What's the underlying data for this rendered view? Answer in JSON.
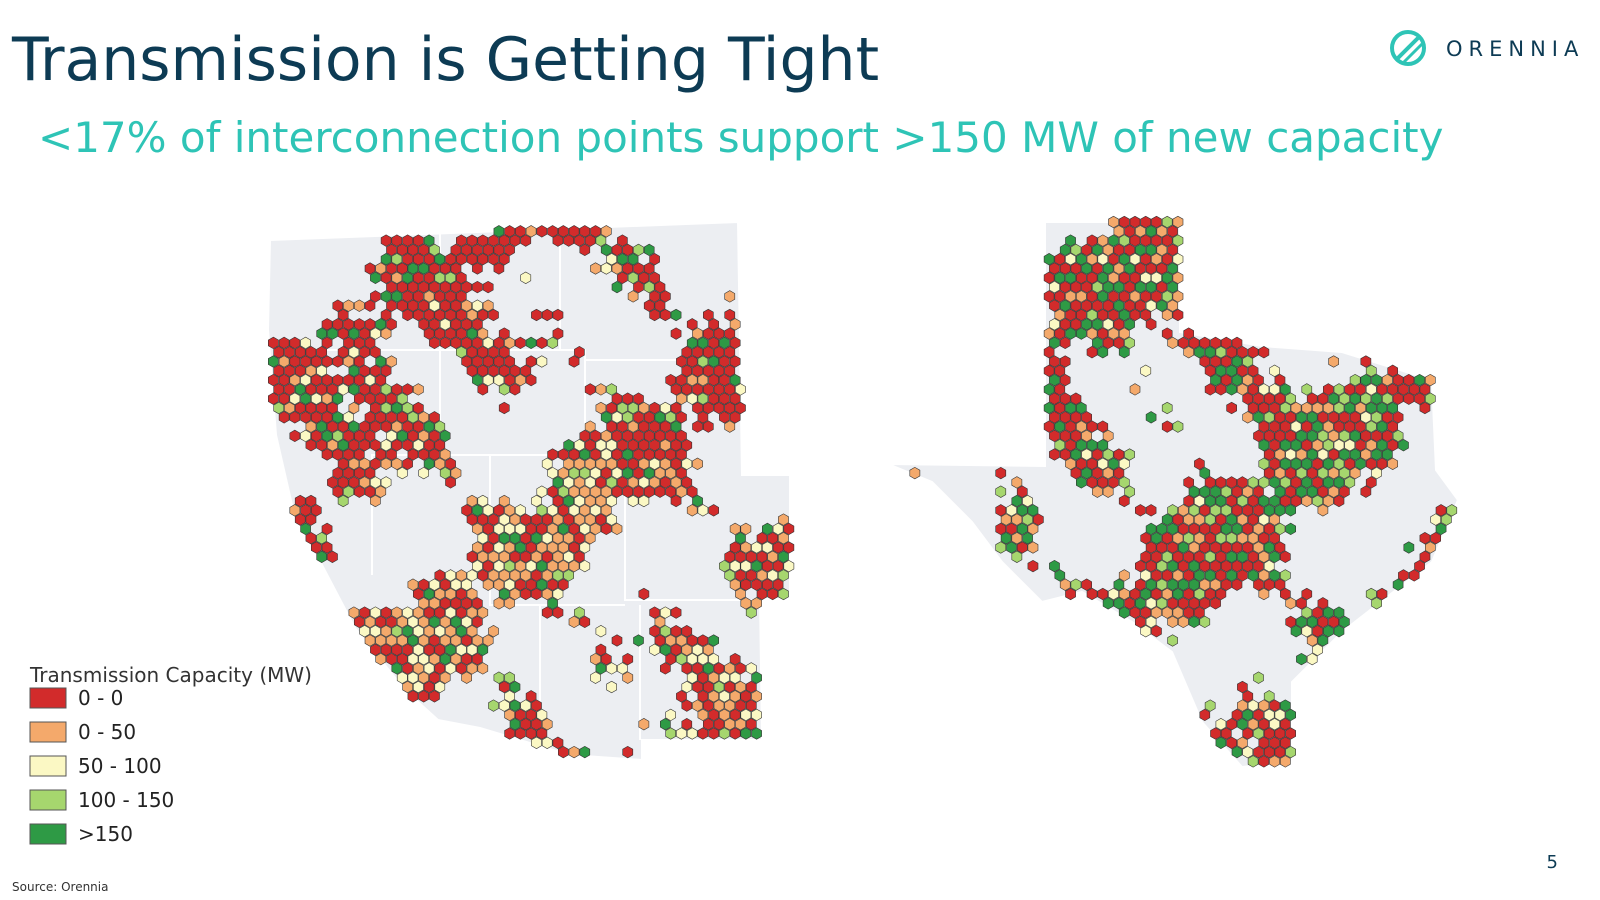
{
  "title": "Transmission is Getting Tight",
  "subtitle": "<17% of interconnection points support >150 MW of new capacity",
  "logo": "ORENNIA",
  "legend": {
    "title": "Transmission Capacity (MW)",
    "items": [
      {
        "label": "0 - 0",
        "color": "#d22b2b"
      },
      {
        "label": "0 - 50",
        "color": "#f4a96b"
      },
      {
        "label": "50 - 100",
        "color": "#fbf8c4"
      },
      {
        "label": "100 - 150",
        "color": "#a6d66e"
      },
      {
        "label": ">150",
        "color": "#2e9a45"
      }
    ]
  },
  "source": "Source: Orennia",
  "page_number": "5"
}
